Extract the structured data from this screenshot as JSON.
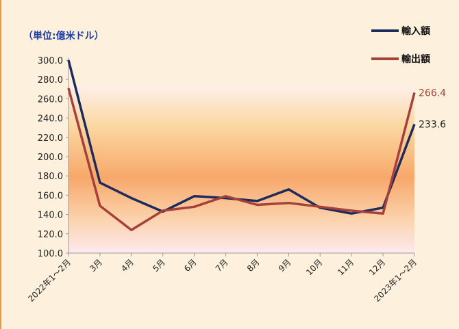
{
  "header": {
    "title": "",
    "unit_label": "（単位:億米ドル）"
  },
  "colors": {
    "import": "#1c2a5c",
    "export": "#a5413a",
    "axis": "#9a9a9a"
  },
  "chart_data": {
    "type": "line",
    "categories": [
      "2022年1～2月",
      "3月",
      "4月",
      "5月",
      "6月",
      "7月",
      "8月",
      "9月",
      "10月",
      "11月",
      "12月",
      "2023年1～2月"
    ],
    "series": [
      {
        "name": "輸入額",
        "values": [
          300.0,
          173.0,
          157.0,
          143.0,
          159.0,
          157.0,
          154.0,
          166.0,
          147.0,
          141.0,
          147.0,
          233.6
        ]
      },
      {
        "name": "輸出額",
        "values": [
          271.0,
          149.0,
          124.0,
          144.0,
          148.0,
          159.0,
          150.0,
          152.0,
          148.0,
          144.0,
          141.0,
          266.4
        ]
      }
    ],
    "end_labels": [
      "233.6",
      "266.4"
    ],
    "y_ticks": [
      "100.0",
      "120.0",
      "140.0",
      "160.0",
      "180.0",
      "200.0",
      "220.0",
      "240.0",
      "260.0",
      "280.0",
      "300.0"
    ],
    "ylim": [
      100,
      300
    ],
    "xlabel": "",
    "ylabel": "",
    "legend": "top-right",
    "grid": false
  }
}
